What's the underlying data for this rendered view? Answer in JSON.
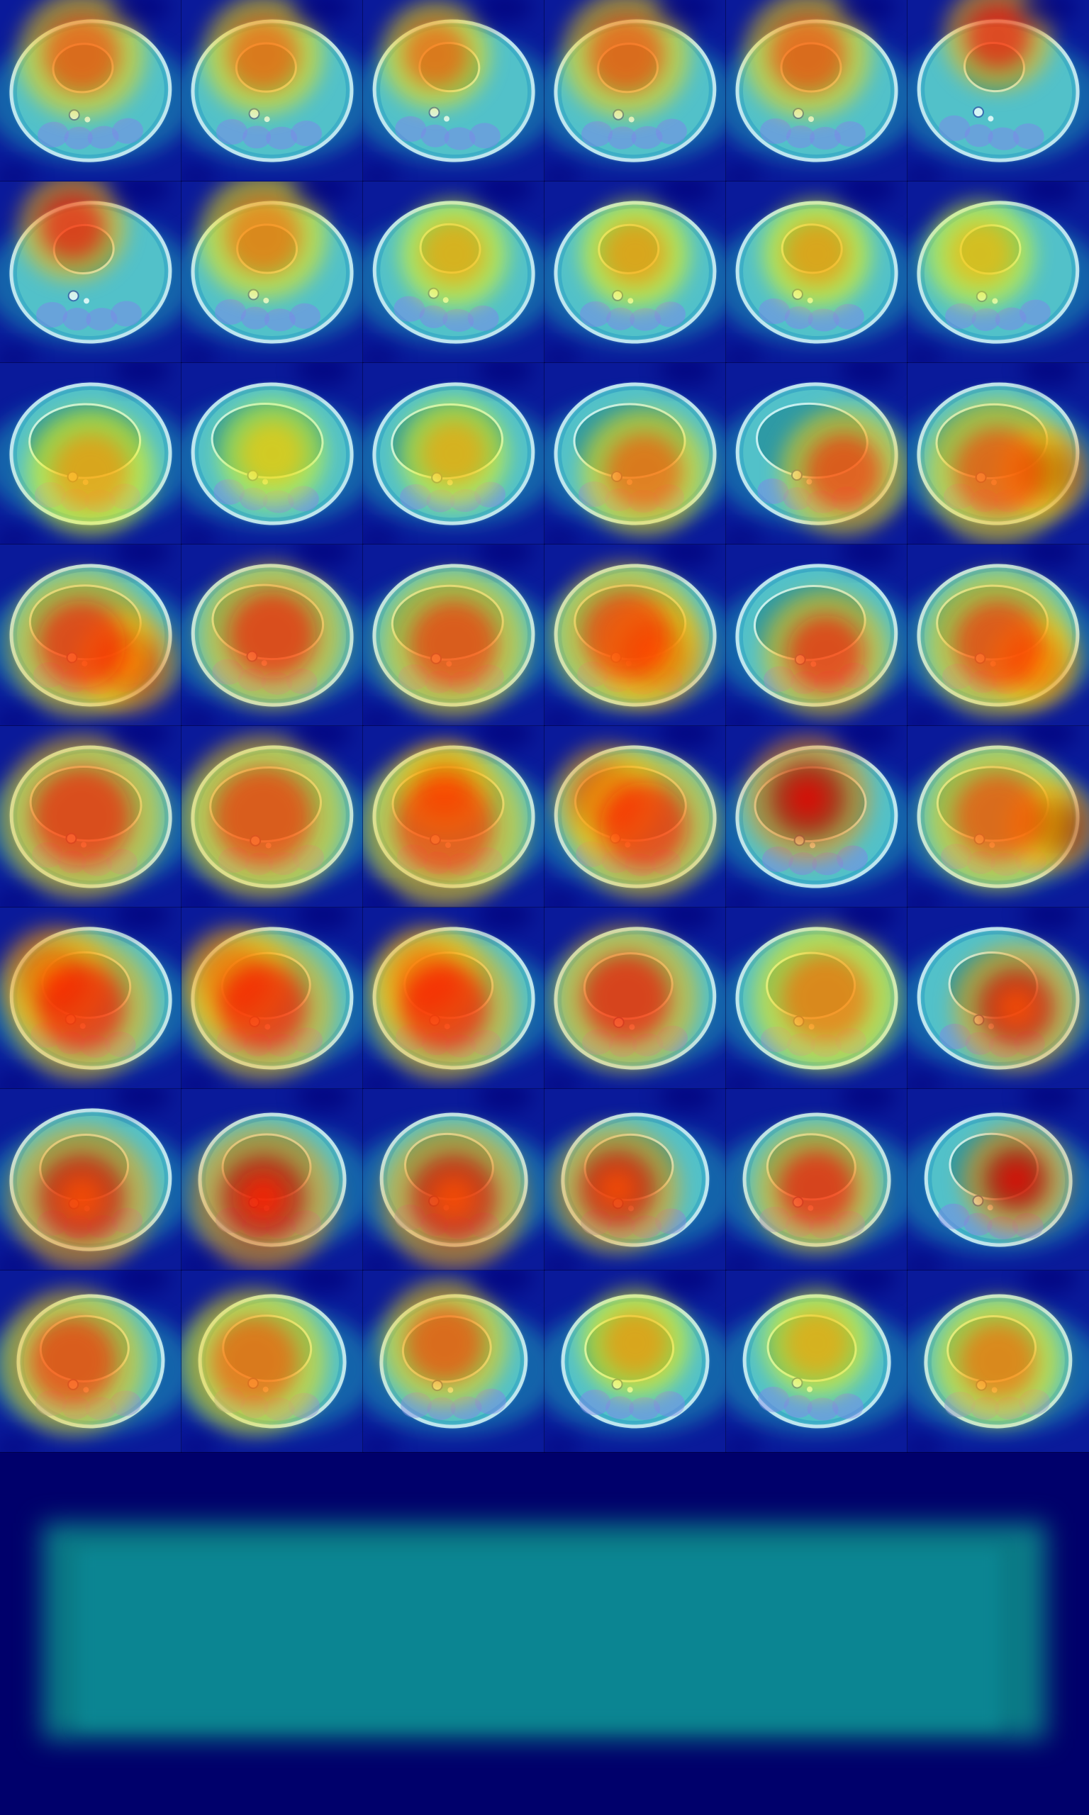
{
  "image": {
    "description_kind": "saliency heatmap montage",
    "colormap": "jet",
    "background_color": "#00006b",
    "columns": 6,
    "rows": 8,
    "tiles": [
      {
        "idx": 1,
        "hot": [
          {
            "dx": 0.45,
            "dy": 0.3,
            "r": 0.35,
            "i": 0.55
          }
        ]
      },
      {
        "idx": 2,
        "hot": [
          {
            "dx": 0.45,
            "dy": 0.3,
            "r": 0.33,
            "i": 0.5
          }
        ]
      },
      {
        "idx": 3,
        "hot": [
          {
            "dx": 0.4,
            "dy": 0.3,
            "r": 0.3,
            "i": 0.5
          }
        ]
      },
      {
        "idx": 4,
        "hot": [
          {
            "dx": 0.45,
            "dy": 0.3,
            "r": 0.35,
            "i": 0.55
          }
        ]
      },
      {
        "idx": 5,
        "hot": [
          {
            "dx": 0.45,
            "dy": 0.3,
            "r": 0.35,
            "i": 0.55
          }
        ]
      },
      {
        "idx": 6,
        "hot": [
          {
            "dx": 0.5,
            "dy": 0.2,
            "r": 0.3,
            "i": 0.7
          }
        ]
      },
      {
        "idx": 7,
        "hot": [
          {
            "dx": 0.4,
            "dy": 0.25,
            "r": 0.3,
            "i": 0.7
          }
        ]
      },
      {
        "idx": 8,
        "hot": [
          {
            "dx": 0.45,
            "dy": 0.3,
            "r": 0.35,
            "i": 0.45
          }
        ]
      },
      {
        "idx": 9,
        "hot": [
          {
            "dx": 0.5,
            "dy": 0.4,
            "r": 0.3,
            "i": 0.3
          }
        ]
      },
      {
        "idx": 10,
        "hot": [
          {
            "dx": 0.5,
            "dy": 0.4,
            "r": 0.3,
            "i": 0.35
          }
        ]
      },
      {
        "idx": 11,
        "hot": [
          {
            "dx": 0.5,
            "dy": 0.4,
            "r": 0.3,
            "i": 0.35
          }
        ]
      },
      {
        "idx": 12,
        "hot": [
          {
            "dx": 0.4,
            "dy": 0.4,
            "r": 0.3,
            "i": 0.25
          }
        ]
      },
      {
        "idx": 13,
        "hot": [
          {
            "dx": 0.5,
            "dy": 0.6,
            "r": 0.35,
            "i": 0.35
          }
        ]
      },
      {
        "idx": 14,
        "hot": [
          {
            "dx": 0.5,
            "dy": 0.5,
            "r": 0.3,
            "i": 0.2
          }
        ]
      },
      {
        "idx": 15,
        "hot": [
          {
            "dx": 0.5,
            "dy": 0.5,
            "r": 0.3,
            "i": 0.3
          }
        ]
      },
      {
        "idx": 16,
        "hot": [
          {
            "dx": 0.55,
            "dy": 0.6,
            "r": 0.35,
            "i": 0.5
          }
        ]
      },
      {
        "idx": 17,
        "hot": [
          {
            "dx": 0.65,
            "dy": 0.6,
            "r": 0.35,
            "i": 0.6
          }
        ]
      },
      {
        "idx": 18,
        "hot": [
          {
            "dx": 0.75,
            "dy": 0.6,
            "r": 0.25,
            "i": 1.0
          },
          {
            "dx": 0.5,
            "dy": 0.6,
            "r": 0.4,
            "i": 0.55
          }
        ]
      },
      {
        "idx": 19,
        "hot": [
          {
            "dx": 0.7,
            "dy": 0.65,
            "r": 0.28,
            "i": 0.85
          },
          {
            "dx": 0.45,
            "dy": 0.55,
            "r": 0.4,
            "i": 0.65
          }
        ]
      },
      {
        "idx": 20,
        "hot": [
          {
            "dx": 0.5,
            "dy": 0.5,
            "r": 0.4,
            "i": 0.65
          }
        ]
      },
      {
        "idx": 21,
        "hot": [
          {
            "dx": 0.5,
            "dy": 0.55,
            "r": 0.4,
            "i": 0.6
          }
        ]
      },
      {
        "idx": 22,
        "hot": [
          {
            "dx": 0.6,
            "dy": 0.6,
            "r": 0.3,
            "i": 0.85
          },
          {
            "dx": 0.45,
            "dy": 0.5,
            "r": 0.4,
            "i": 0.6
          }
        ]
      },
      {
        "idx": 23,
        "hot": [
          {
            "dx": 0.55,
            "dy": 0.6,
            "r": 0.35,
            "i": 0.65
          }
        ]
      },
      {
        "idx": 24,
        "hot": [
          {
            "dx": 0.7,
            "dy": 0.65,
            "r": 0.25,
            "i": 0.8
          },
          {
            "dx": 0.5,
            "dy": 0.55,
            "r": 0.4,
            "i": 0.6
          }
        ]
      },
      {
        "idx": 25,
        "hot": [
          {
            "dx": 0.45,
            "dy": 0.5,
            "r": 0.45,
            "i": 0.65
          }
        ]
      },
      {
        "idx": 26,
        "hot": [
          {
            "dx": 0.45,
            "dy": 0.5,
            "r": 0.45,
            "i": 0.6
          }
        ]
      },
      {
        "idx": 27,
        "hot": [
          {
            "dx": 0.45,
            "dy": 0.35,
            "r": 0.25,
            "i": 0.85
          },
          {
            "dx": 0.45,
            "dy": 0.55,
            "r": 0.45,
            "i": 0.6
          }
        ]
      },
      {
        "idx": 28,
        "hot": [
          {
            "dx": 0.35,
            "dy": 0.4,
            "r": 0.3,
            "i": 0.75
          },
          {
            "dx": 0.55,
            "dy": 0.55,
            "r": 0.4,
            "i": 0.65
          }
        ]
      },
      {
        "idx": 29,
        "hot": [
          {
            "dx": 0.45,
            "dy": 0.4,
            "r": 0.35,
            "i": 0.9
          }
        ]
      },
      {
        "idx": 30,
        "hot": [
          {
            "dx": 0.8,
            "dy": 0.55,
            "r": 0.25,
            "i": 1.0
          },
          {
            "dx": 0.5,
            "dy": 0.5,
            "r": 0.4,
            "i": 0.55
          }
        ]
      },
      {
        "idx": 31,
        "hot": [
          {
            "dx": 0.3,
            "dy": 0.4,
            "r": 0.3,
            "i": 0.85
          },
          {
            "dx": 0.45,
            "dy": 0.55,
            "r": 0.4,
            "i": 0.7
          }
        ]
      },
      {
        "idx": 32,
        "hot": [
          {
            "dx": 0.3,
            "dy": 0.4,
            "r": 0.3,
            "i": 0.75
          },
          {
            "dx": 0.45,
            "dy": 0.55,
            "r": 0.4,
            "i": 0.7
          }
        ]
      },
      {
        "idx": 33,
        "hot": [
          {
            "dx": 0.35,
            "dy": 0.4,
            "r": 0.3,
            "i": 0.7
          },
          {
            "dx": 0.45,
            "dy": 0.55,
            "r": 0.4,
            "i": 0.7
          }
        ]
      },
      {
        "idx": 34,
        "hot": [
          {
            "dx": 0.45,
            "dy": 0.5,
            "r": 0.4,
            "i": 0.7
          }
        ]
      },
      {
        "idx": 35,
        "hot": [
          {
            "dx": 0.55,
            "dy": 0.5,
            "r": 0.4,
            "i": 0.45
          }
        ]
      },
      {
        "idx": 36,
        "hot": [
          {
            "dx": 0.6,
            "dy": 0.55,
            "r": 0.35,
            "i": 0.8
          }
        ]
      },
      {
        "idx": 37,
        "hot": [
          {
            "dx": 0.45,
            "dy": 0.6,
            "r": 0.4,
            "i": 0.8
          }
        ]
      },
      {
        "idx": 38,
        "hot": [
          {
            "dx": 0.45,
            "dy": 0.6,
            "r": 0.4,
            "i": 0.85
          }
        ]
      },
      {
        "idx": 39,
        "hot": [
          {
            "dx": 0.5,
            "dy": 0.6,
            "r": 0.4,
            "i": 0.8
          }
        ]
      },
      {
        "idx": 40,
        "hot": [
          {
            "dx": 0.4,
            "dy": 0.55,
            "r": 0.35,
            "i": 0.8
          }
        ]
      },
      {
        "idx": 41,
        "hot": [
          {
            "dx": 0.5,
            "dy": 0.55,
            "r": 0.35,
            "i": 0.7
          }
        ]
      },
      {
        "idx": 42,
        "hot": [
          {
            "dx": 0.6,
            "dy": 0.5,
            "r": 0.3,
            "i": 0.9
          }
        ]
      },
      {
        "idx": 43,
        "hot": [
          {
            "dx": 0.4,
            "dy": 0.5,
            "r": 0.4,
            "i": 0.6
          }
        ]
      },
      {
        "idx": 44,
        "hot": [
          {
            "dx": 0.4,
            "dy": 0.5,
            "r": 0.4,
            "i": 0.5
          }
        ]
      },
      {
        "idx": 45,
        "hot": [
          {
            "dx": 0.45,
            "dy": 0.4,
            "r": 0.35,
            "i": 0.55
          }
        ]
      },
      {
        "idx": 46,
        "hot": [
          {
            "dx": 0.5,
            "dy": 0.4,
            "r": 0.3,
            "i": 0.35
          }
        ]
      },
      {
        "idx": 47,
        "hot": [
          {
            "dx": 0.5,
            "dy": 0.4,
            "r": 0.3,
            "i": 0.3
          }
        ]
      },
      {
        "idx": 48,
        "hot": [
          {
            "dx": 0.5,
            "dy": 0.5,
            "r": 0.35,
            "i": 0.45
          }
        ]
      }
    ]
  }
}
